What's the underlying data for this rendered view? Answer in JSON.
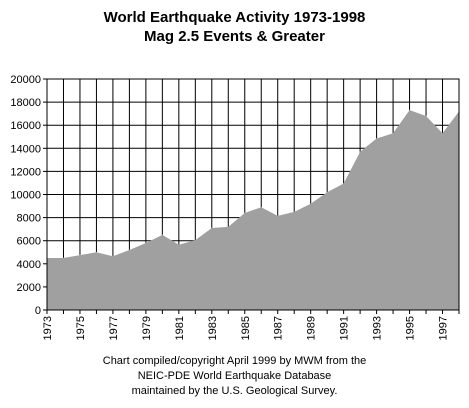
{
  "chart_data": {
    "type": "area",
    "title": "World Earthquake Activity 1973-1998",
    "subtitle": "Mag 2.5 Events & Greater",
    "xlabel": "",
    "ylabel": "",
    "x": [
      1973,
      1974,
      1975,
      1976,
      1977,
      1978,
      1979,
      1980,
      1981,
      1982,
      1983,
      1984,
      1985,
      1986,
      1987,
      1988,
      1989,
      1990,
      1991,
      1992,
      1993,
      1994,
      1995,
      1996,
      1997,
      1998
    ],
    "values": [
      4500,
      4500,
      4750,
      5000,
      4650,
      5200,
      5800,
      6500,
      5650,
      6050,
      7100,
      7200,
      8400,
      8900,
      8150,
      8500,
      9200,
      10200,
      10950,
      13700,
      14850,
      15300,
      17300,
      16800,
      15300,
      17200
    ],
    "ylim": [
      0,
      20000
    ],
    "yticks": [
      0,
      2000,
      4000,
      6000,
      8000,
      10000,
      12000,
      14000,
      16000,
      18000,
      20000
    ],
    "xtick_labels": [
      "1973",
      "1975",
      "1977",
      "1979",
      "1981",
      "1983",
      "1985",
      "1987",
      "1989",
      "1991",
      "1993",
      "1995",
      "1997"
    ],
    "grid": true,
    "legend": "none",
    "fill_color": "#a0a0a0",
    "line_color": "#000000"
  },
  "caption": {
    "line1": "Chart compiled/copyright April 1999 by MWM from the",
    "line2": "NEIC-PDE World Earthquake Database",
    "line3": "maintained by the U.S. Geological Survey."
  }
}
